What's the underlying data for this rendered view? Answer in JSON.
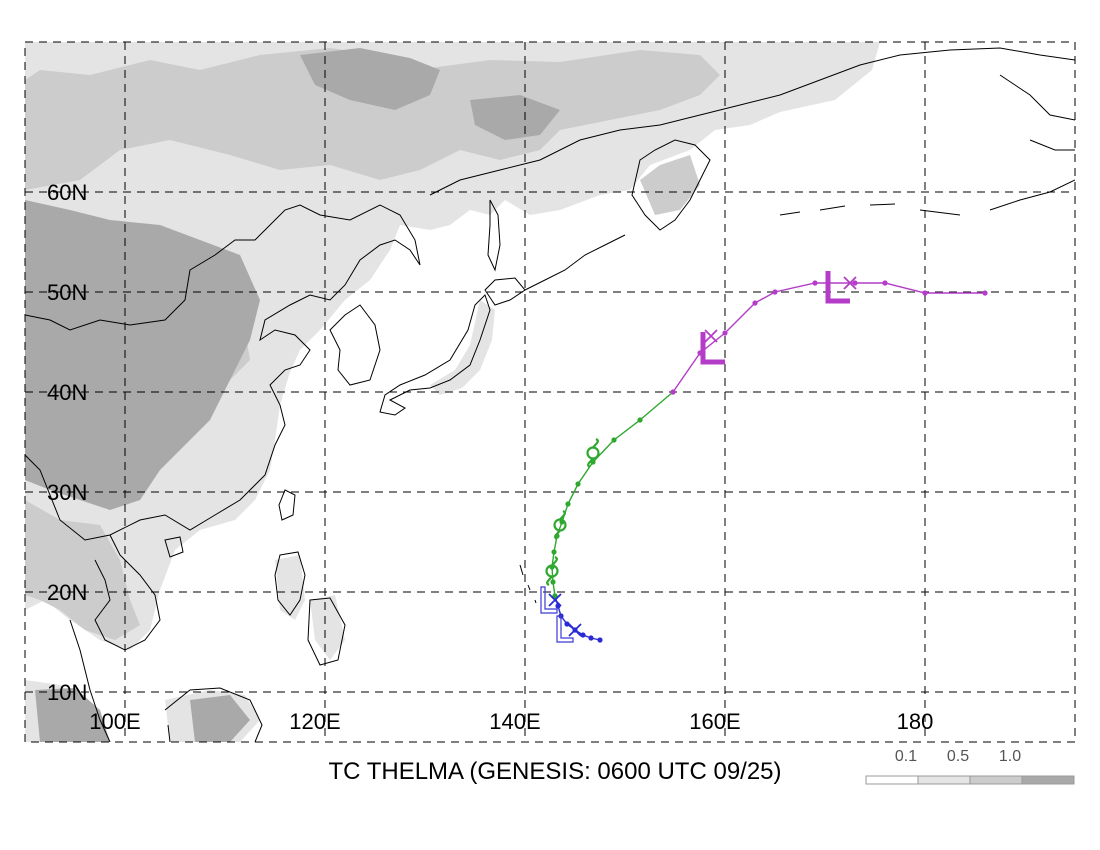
{
  "map": {
    "lat_labels": [
      "60N",
      "50N",
      "40N",
      "30N",
      "20N",
      "10N"
    ],
    "lon_labels": [
      "100E",
      "120E",
      "140E",
      "160E",
      "180"
    ],
    "colors": {
      "land_light": "#e4e4e4",
      "land_mid": "#cccccc",
      "land_dark": "#a9a9a9",
      "grid": "#000000",
      "coast": "#000000"
    }
  },
  "title": "TC THELMA (GENESIS: 0600 UTC 09/25)",
  "legend": {
    "labels": [
      "0.1",
      "0.5",
      "1.0"
    ],
    "colors": [
      "#ffffff",
      "#e4e4e4",
      "#cccccc",
      "#a9a9a9"
    ]
  },
  "track": {
    "segments": [
      {
        "stage": "early",
        "color": "#2b2bd6",
        "points": [
          [
            147.5,
            15.2
          ],
          [
            146.6,
            15.4
          ],
          [
            145.8,
            15.7
          ],
          [
            145.0,
            16.2
          ],
          [
            144.2,
            16.8
          ],
          [
            143.6,
            17.6
          ],
          [
            143.3,
            18.6
          ],
          [
            143.0,
            19.6
          ]
        ]
      },
      {
        "stage": "tropical",
        "color": "#2ea82e",
        "points": [
          [
            143.0,
            19.6
          ],
          [
            142.8,
            21.0
          ],
          [
            142.7,
            22.5
          ],
          [
            142.9,
            24.0
          ],
          [
            143.2,
            25.6
          ],
          [
            143.7,
            27.0
          ],
          [
            144.3,
            28.8
          ],
          [
            145.3,
            30.8
          ],
          [
            146.8,
            33.0
          ],
          [
            148.9,
            35.2
          ],
          [
            151.5,
            37.2
          ],
          [
            154.8,
            40.0
          ]
        ]
      },
      {
        "stage": "extratropical",
        "color": "#b43cc8",
        "points": [
          [
            154.8,
            40.0
          ],
          [
            157.5,
            43.9
          ],
          [
            160.0,
            45.9
          ],
          [
            163.0,
            48.9
          ],
          [
            165.0,
            50.0
          ],
          [
            169.0,
            50.9
          ],
          [
            173.0,
            50.9
          ],
          [
            176.0,
            50.9
          ],
          [
            180.0,
            49.9
          ],
          [
            186.0,
            49.9
          ]
        ]
      }
    ],
    "symbols": [
      {
        "type": "tropical-storm",
        "lon": 146.8,
        "lat": 33.9,
        "color": "#2ea82e"
      },
      {
        "type": "tropical-storm",
        "lon": 143.5,
        "lat": 26.7,
        "color": "#2ea82e"
      },
      {
        "type": "tropical-storm",
        "lon": 142.7,
        "lat": 22.1,
        "color": "#2ea82e"
      },
      {
        "type": "low",
        "lon": 141.6,
        "lat": 19.2,
        "color": "#3a3ad6",
        "size": "small"
      },
      {
        "type": "low",
        "lon": 143.2,
        "lat": 16.3,
        "color": "#3a3ad6",
        "size": "small"
      },
      {
        "type": "low",
        "lon": 157.8,
        "lat": 44.5,
        "color": "#b43cc8",
        "size": "large"
      },
      {
        "type": "low",
        "lon": 170.3,
        "lat": 50.6,
        "color": "#b43cc8",
        "size": "large"
      }
    ],
    "crosses": [
      {
        "lon": 143.0,
        "lat": 19.2,
        "color": "#2b2bd6"
      },
      {
        "lon": 145.0,
        "lat": 16.2,
        "color": "#2b2bd6"
      },
      {
        "lon": 158.6,
        "lat": 45.6,
        "color": "#b43cc8"
      },
      {
        "lon": 172.5,
        "lat": 50.9,
        "color": "#b43cc8"
      }
    ]
  }
}
